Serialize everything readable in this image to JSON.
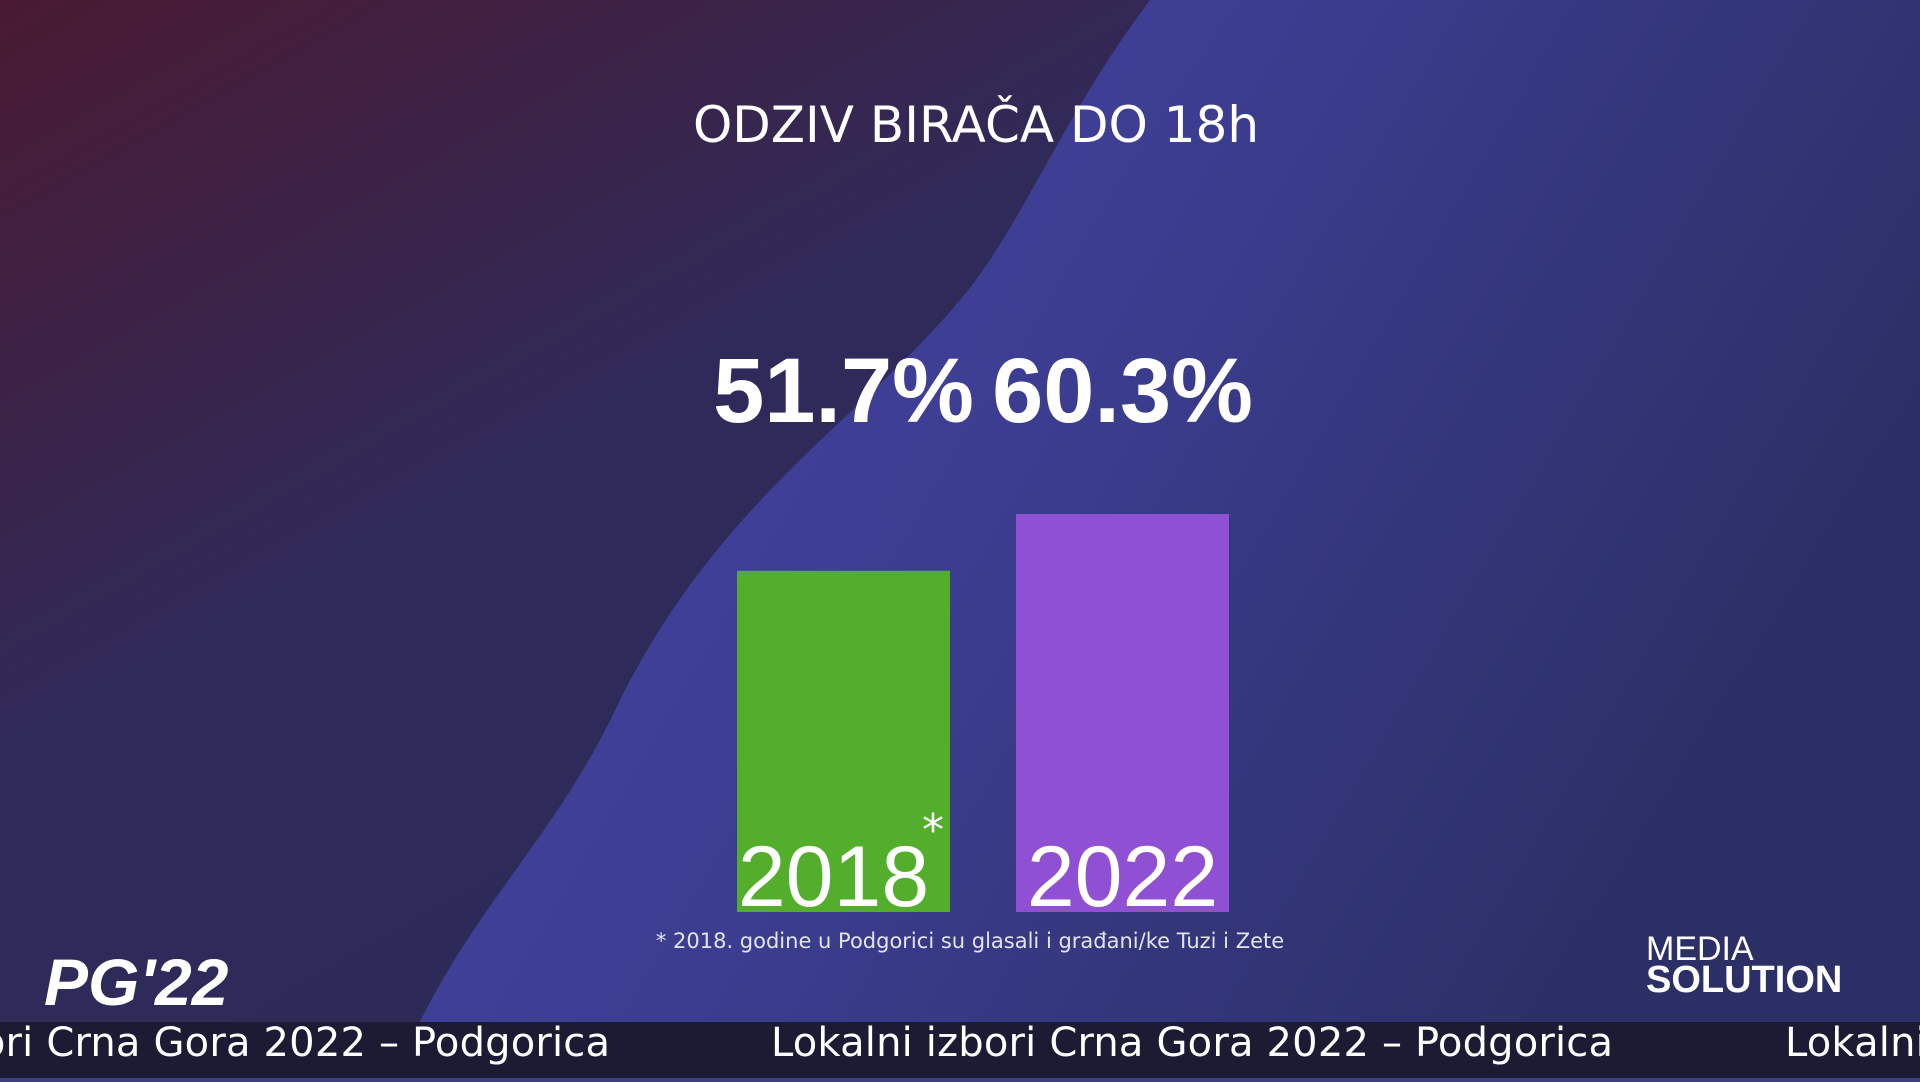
{
  "chart_data": {
    "type": "bar",
    "title": "ODZIV BIRAČA DO 18h",
    "categories": [
      "2018",
      "2022"
    ],
    "values": [
      51.7,
      60.3
    ],
    "value_labels": [
      "51.7%",
      "60.3%"
    ],
    "colors": [
      "#53ae2b",
      "#8f50d4"
    ],
    "footnote_marker": "*",
    "footnote": "* 2018. godine u Podgorici su glasali i građani/ke Tuzi i Zete"
  },
  "logo": "PG'22",
  "brand": {
    "line1": "MEDIA",
    "line2": "SOLUTION"
  },
  "ticker": "Lokalni izbori Crna Gora 2022 – Podgorica"
}
